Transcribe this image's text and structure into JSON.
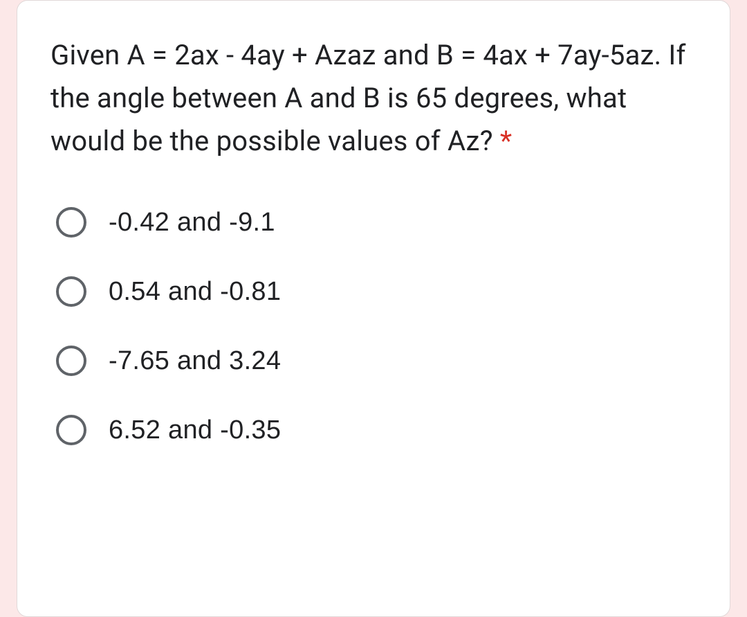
{
  "card": {
    "background_color": "#ffffff",
    "border_radius": 16,
    "page_background": "#fce8e8"
  },
  "question": {
    "text": "Given A = 2ax - 4ay + Azaz and B = 4ax + 7ay-5az. If the angle between A and B is 65 degrees, what would be the possible values of Az? ",
    "required_marker": "*",
    "font_size": 40,
    "text_color": "#202124",
    "asterisk_color": "#d93025"
  },
  "options": [
    {
      "label": "-0.42 and -9.1",
      "selected": false
    },
    {
      "label": "0.54 and -0.81",
      "selected": false
    },
    {
      "label": "-7.65 and 3.24",
      "selected": false
    },
    {
      "label": "6.52 and -0.35",
      "selected": false
    }
  ],
  "option_style": {
    "radio_border_color": "#5f6368",
    "radio_size": 44,
    "label_font_size": 38,
    "label_color": "#202124"
  }
}
